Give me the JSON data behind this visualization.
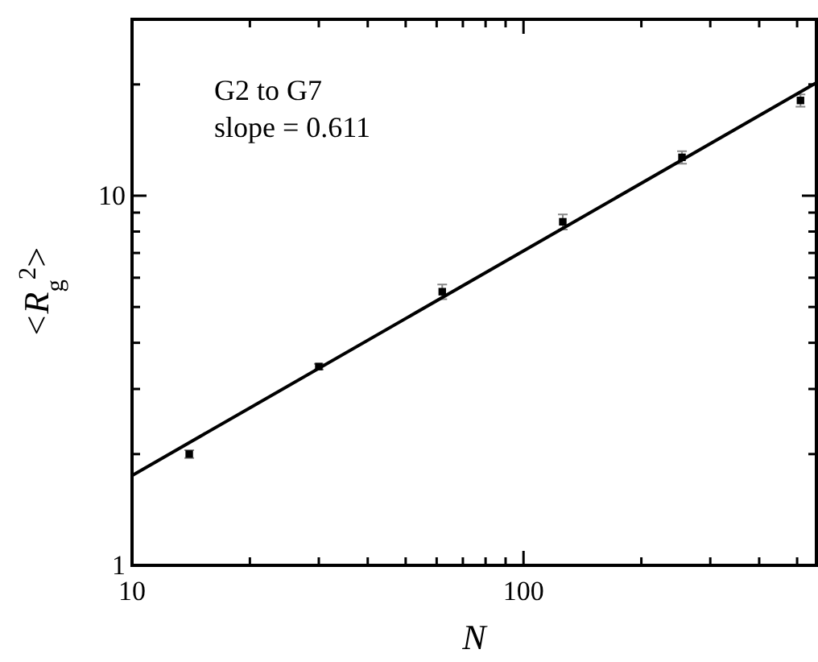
{
  "chart_data": {
    "type": "scatter",
    "xlabel": "N",
    "ylabel": "<R$_{g}$$^{2}$>",
    "log": "xy",
    "grid": false,
    "xlim": [
      10,
      560
    ],
    "ylim": [
      1,
      30
    ],
    "xticks": [
      10,
      {
        "value": 20,
        "label": null
      },
      {
        "value": 30,
        "label": null
      },
      {
        "value": 40,
        "label": null
      },
      {
        "value": 50,
        "label": null
      },
      {
        "value": 60,
        "label": null
      },
      {
        "value": 70,
        "label": null
      },
      {
        "value": 80,
        "label": null
      },
      {
        "value": 90,
        "label": null
      },
      100,
      {
        "value": 200,
        "label": null
      },
      {
        "value": 300,
        "label": null
      },
      {
        "value": 400,
        "label": null
      },
      {
        "value": 500,
        "label": null
      }
    ],
    "yticks": [
      1,
      {
        "value": 2,
        "label": null
      },
      {
        "value": 3,
        "label": null
      },
      {
        "value": 4,
        "label": null
      },
      {
        "value": 5,
        "label": null
      },
      {
        "value": 6,
        "label": null
      },
      {
        "value": 7,
        "label": null
      },
      {
        "value": 8,
        "label": null
      },
      {
        "value": 9,
        "label": null
      },
      10,
      {
        "value": 20,
        "label": null
      }
    ],
    "annotations": [
      "G2 to G7",
      "slope = 0.611"
    ],
    "series": [
      {
        "color": "#000000",
        "marker": "square",
        "x": [
          14,
          30,
          62,
          126,
          254,
          510
        ],
        "values": [
          2.0,
          3.45,
          5.5,
          8.5,
          12.7,
          18.1
        ],
        "errors": [
          0.05,
          0.06,
          0.25,
          0.4,
          0.5,
          0.7
        ]
      },
      {
        "type": "line",
        "color": "#000000",
        "line_style": "solid",
        "marker": "none",
        "x": [
          10,
          560
        ],
        "values": [
          1.75,
          20.2
        ]
      }
    ]
  }
}
